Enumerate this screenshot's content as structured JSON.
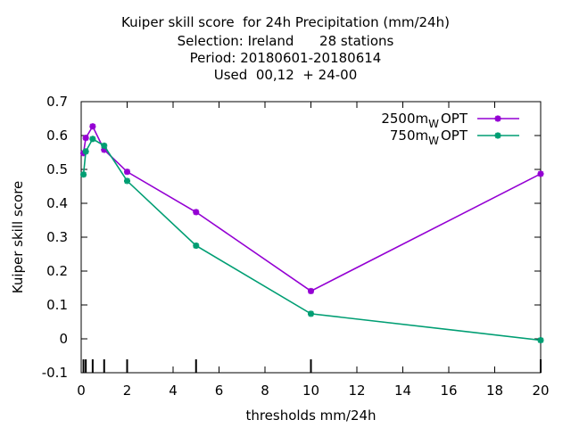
{
  "chart_data": {
    "type": "line",
    "title_lines": [
      "Kuiper skill score  for 24h Precipitation (mm/24h)",
      "Selection: Ireland      28 stations",
      "Period: 20180601-20180614",
      "Used  00,12  + 24-00"
    ],
    "xlabel": "thresholds mm/24h",
    "ylabel": "Kuiper skill score",
    "xlim": [
      0,
      20
    ],
    "ylim": [
      -0.1,
      0.7
    ],
    "xticks": [
      0,
      2,
      4,
      6,
      8,
      10,
      12,
      14,
      16,
      18,
      20
    ],
    "yticks": [
      -0.1,
      0,
      0.1,
      0.2,
      0.3,
      0.4,
      0.5,
      0.6,
      0.7
    ],
    "xtick_labels": [
      "0",
      "2",
      "4",
      "6",
      "8",
      "10",
      "12",
      "14",
      "16",
      "18",
      "20"
    ],
    "ytick_labels": [
      "-0.1",
      "0",
      "0.1",
      "0.2",
      "0.3",
      "0.4",
      "0.5",
      "0.6",
      "0.7"
    ],
    "threshold_marks": [
      0.1,
      0.2,
      0.5,
      1,
      2,
      5,
      10,
      20
    ],
    "grid": false,
    "legend_position": "top-right",
    "series": [
      {
        "name": "2500m",
        "name_sub": "W",
        "name_suffix": "OPT",
        "color": "#9400d3",
        "x": [
          0.1,
          0.2,
          0.5,
          1,
          2,
          5,
          10,
          20
        ],
        "y": [
          0.548,
          0.593,
          0.627,
          0.558,
          0.493,
          0.374,
          0.141,
          0.487
        ]
      },
      {
        "name": "750m",
        "name_sub": "W",
        "name_suffix": "OPT",
        "color": "#009e73",
        "x": [
          0.1,
          0.2,
          0.5,
          1,
          2,
          5,
          10,
          20
        ],
        "y": [
          0.485,
          0.553,
          0.59,
          0.57,
          0.466,
          0.275,
          0.074,
          -0.004
        ]
      }
    ]
  }
}
